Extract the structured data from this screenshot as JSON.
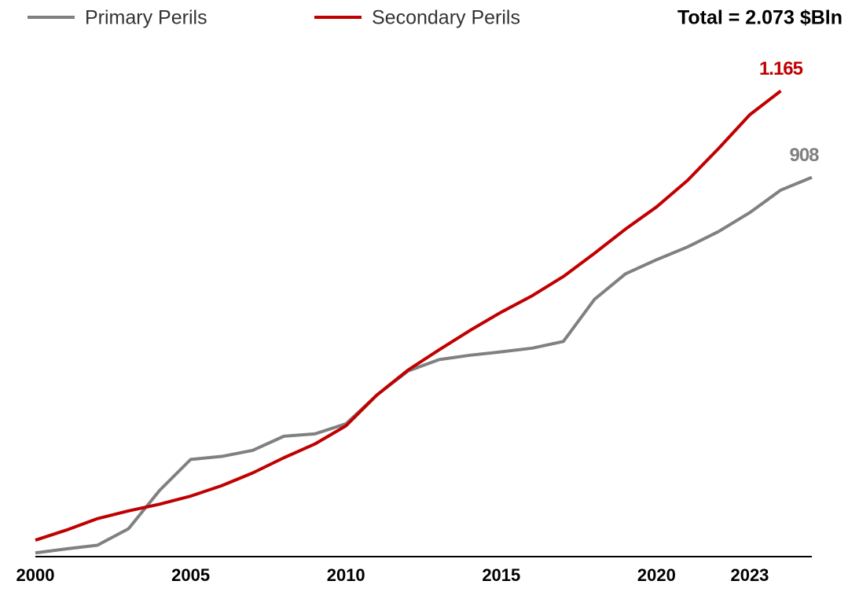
{
  "chart_data": {
    "type": "line",
    "annotation": "Total = 2.073 $Bln",
    "xlim": [
      2000,
      2025
    ],
    "xticks": [
      2000,
      2005,
      2010,
      2015,
      2020,
      2023
    ],
    "ylim": [
      -220,
      1260
    ],
    "legend": "top-left",
    "series": [
      {
        "name": "Primary Perils",
        "color": "#808080",
        "x": [
          2000,
          2001,
          2002,
          2003,
          2004,
          2005,
          2006,
          2007,
          2008,
          2009,
          2010,
          2011,
          2012,
          2013,
          2014,
          2015,
          2016,
          2017,
          2018,
          2019,
          2020,
          2021,
          2022,
          2023,
          2024,
          2025
        ],
        "values": [
          -209,
          -197,
          -186,
          -137,
          -23,
          69,
          78,
          96,
          138,
          145,
          175,
          261,
          332,
          366,
          379,
          389,
          400,
          420,
          545,
          621,
          663,
          701,
          747,
          803,
          870,
          908
        ],
        "value_labels": [
          null,
          null,
          null,
          null,
          null,
          null,
          null,
          null,
          null,
          null,
          null,
          null,
          null,
          null,
          null,
          null,
          null,
          null,
          null,
          null,
          null,
          null,
          null,
          null,
          null,
          "908"
        ]
      },
      {
        "name": "Secondary Perils",
        "color": "#c00000",
        "x": [
          2000,
          2001,
          2002,
          2003,
          2004,
          2005,
          2006,
          2007,
          2008,
          2009,
          2010,
          2011,
          2012,
          2013,
          2014,
          2015,
          2016,
          2017,
          2018,
          2019,
          2020,
          2021,
          2022,
          2023,
          2024
        ],
        "values": [
          -171,
          -141,
          -107,
          -84,
          -64,
          -40,
          -9,
          29,
          74,
          115,
          169,
          261,
          335,
          395,
          453,
          507,
          556,
          613,
          682,
          754,
          820,
          899,
          994,
          1094,
          1165
        ],
        "value_labels": [
          null,
          null,
          null,
          null,
          null,
          null,
          null,
          null,
          null,
          null,
          null,
          null,
          null,
          null,
          null,
          null,
          null,
          null,
          null,
          null,
          null,
          null,
          null,
          null,
          "1.165"
        ]
      }
    ]
  }
}
